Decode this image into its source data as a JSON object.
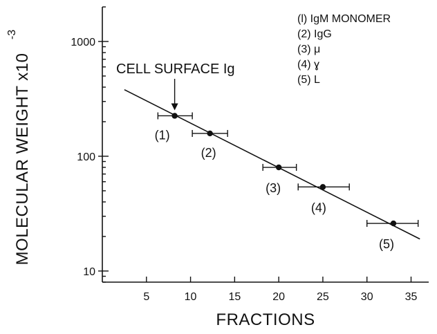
{
  "chart_data": {
    "type": "scatter",
    "xlabel": "FRACTIONS",
    "ylabel": "MOLECULAR WEIGHT x10",
    "ylabel_exponent": "-3",
    "y_scale": "log",
    "xlim": [
      0,
      37
    ],
    "ylim": [
      8,
      2000
    ],
    "x_ticks": [
      5,
      10,
      15,
      20,
      25,
      30,
      35
    ],
    "x_tick_labels": [
      "5",
      "10",
      "15",
      "20",
      "25",
      "30",
      "35"
    ],
    "y_ticks": [
      10,
      100,
      1000
    ],
    "y_tick_labels": [
      "10",
      "100",
      "1000"
    ],
    "grid": false,
    "points": [
      {
        "label": "(1)",
        "x": 8.2,
        "y": 225,
        "xerr": [
          6.3,
          10.2
        ]
      },
      {
        "label": "(2)",
        "x": 12.2,
        "y": 158,
        "xerr": [
          10.2,
          14.2
        ]
      },
      {
        "label": "(3)",
        "x": 20.0,
        "y": 80,
        "xerr": [
          18.2,
          22.0
        ]
      },
      {
        "label": "(4)",
        "x": 25.0,
        "y": 54,
        "xerr": [
          22.2,
          28.0
        ]
      },
      {
        "label": "(5)",
        "x": 33.0,
        "y": 26,
        "xerr": [
          30.0,
          35.8
        ]
      }
    ],
    "fit_line": {
      "x": [
        2.5,
        36.0
      ],
      "y": [
        380,
        19
      ]
    },
    "annotation": {
      "text": "CELL SURFACE Ig",
      "points_to_x": 8.2,
      "points_to_y": 225
    },
    "legend": {
      "placement": "top-right",
      "entries": [
        "(l) IgM MONOMER",
        "(2) IgG",
        "(3) μ",
        "(4) ɣ",
        "(5) L"
      ]
    }
  }
}
